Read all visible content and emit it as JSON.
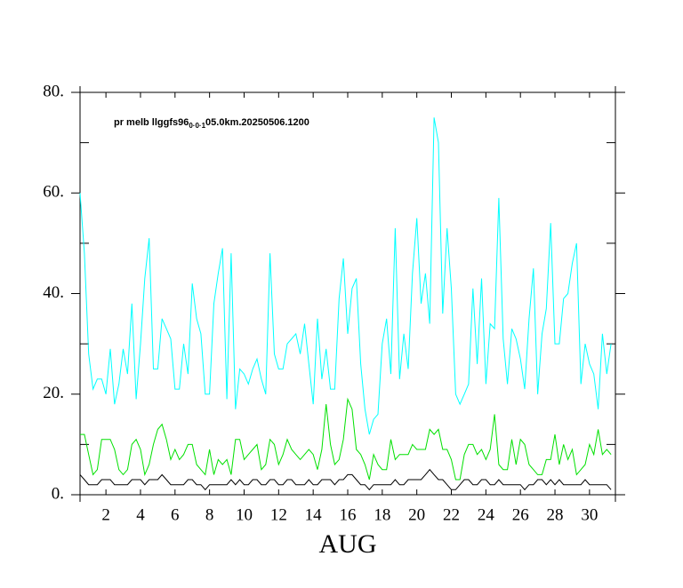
{
  "chart_data": {
    "type": "line",
    "annotation": {
      "text": "pr melb llggfs96",
      "subscript": "0·0·1",
      "suffix": "05.0km.20250506.1200"
    },
    "x_label": "AUG",
    "x": [
      1,
      1.25,
      1.5,
      1.75,
      2,
      2.25,
      2.5,
      2.75,
      3,
      3.25,
      3.5,
      3.75,
      4,
      4.25,
      4.5,
      4.75,
      5,
      5.25,
      5.5,
      5.75,
      6,
      6.25,
      6.5,
      6.75,
      7,
      7.25,
      7.5,
      7.75,
      8,
      8.25,
      8.5,
      8.75,
      9,
      9.25,
      9.5,
      9.75,
      10,
      10.25,
      10.5,
      10.75,
      11,
      11.25,
      11.5,
      11.75,
      12,
      12.25,
      12.5,
      12.75,
      13,
      13.25,
      13.5,
      13.75,
      14,
      14.25,
      14.5,
      14.75,
      15,
      15.25,
      15.5,
      15.75,
      16,
      16.25,
      16.5,
      16.75,
      17,
      17.25,
      17.5,
      17.75,
      18,
      18.25,
      18.5,
      18.75,
      19,
      19.25,
      19.5,
      19.75,
      20,
      20.25,
      20.5,
      20.75,
      21,
      21.25,
      21.5,
      21.75,
      22,
      22.25,
      22.5,
      22.75,
      23,
      23.25,
      23.5,
      23.75,
      24,
      24.25,
      24.5,
      24.75,
      25,
      25.25,
      25.5,
      25.75,
      26,
      26.25,
      26.5,
      26.75,
      27,
      27.25,
      27.5,
      27.75,
      28,
      28.25,
      28.5,
      28.75,
      29,
      29.25,
      29.5,
      29.75,
      30,
      30.25,
      30.5,
      30.75,
      31,
      31.25,
      31.5,
      31.75
    ],
    "series": [
      {
        "color": "#00ffff",
        "values": [
          60,
          48,
          28,
          21,
          23,
          23,
          20,
          29,
          18,
          22,
          29,
          24,
          38,
          19,
          30,
          43,
          51,
          25,
          25,
          35,
          33,
          31,
          21,
          21,
          30,
          24,
          42,
          35,
          32,
          20,
          20,
          38,
          44,
          49,
          19,
          48,
          17,
          25,
          24,
          22,
          25,
          27,
          23,
          20,
          48,
          28,
          25,
          25,
          30,
          31,
          32,
          28,
          34,
          26,
          18,
          35,
          23,
          29,
          21,
          21,
          39,
          47,
          32,
          41,
          43,
          26,
          17,
          12,
          15,
          16,
          30,
          35,
          24,
          53,
          23,
          32,
          25,
          44,
          55,
          38,
          44,
          34,
          75,
          70,
          36,
          53,
          41,
          20,
          18,
          20,
          22,
          41,
          26,
          43,
          22,
          34,
          33,
          59,
          31,
          22,
          33,
          31,
          27,
          21,
          35,
          45,
          20,
          32,
          37,
          54,
          30,
          30,
          39,
          40,
          46,
          50,
          22,
          30,
          26,
          24,
          17,
          32,
          24,
          30
        ]
      },
      {
        "color": "#00e000",
        "values": [
          12,
          12,
          8,
          4,
          5,
          11,
          11,
          11,
          9,
          5,
          4,
          5,
          10,
          11,
          9,
          4,
          6,
          10,
          13,
          14,
          11,
          7,
          9,
          7,
          8,
          10,
          10,
          6,
          5,
          4,
          9,
          4,
          7,
          6,
          7,
          4,
          11,
          11,
          7,
          8,
          9,
          10,
          5,
          6,
          11,
          10,
          6,
          8,
          11,
          9,
          8,
          7,
          8,
          9,
          8,
          5,
          9,
          18,
          10,
          6,
          7,
          11,
          19,
          17,
          9,
          8,
          6,
          3,
          8,
          6,
          5,
          5,
          11,
          7,
          8,
          8,
          8,
          10,
          9,
          9,
          9,
          13,
          12,
          13,
          9,
          9,
          7,
          3,
          3,
          8,
          10,
          10,
          8,
          9,
          7,
          9,
          16,
          6,
          5,
          5,
          11,
          6,
          11,
          10,
          6,
          5,
          4,
          4,
          7,
          7,
          12,
          6,
          10,
          7,
          9,
          4,
          5,
          6,
          10,
          8,
          13,
          8,
          9,
          8
        ]
      },
      {
        "color": "#000000",
        "values": [
          4,
          3,
          2,
          2,
          2,
          3,
          3,
          3,
          2,
          2,
          2,
          2,
          3,
          3,
          3,
          2,
          3,
          3,
          3,
          4,
          3,
          2,
          2,
          2,
          2,
          3,
          3,
          2,
          2,
          1,
          2,
          2,
          2,
          2,
          2,
          3,
          2,
          3,
          2,
          2,
          3,
          3,
          2,
          2,
          3,
          3,
          2,
          2,
          3,
          3,
          2,
          2,
          2,
          3,
          2,
          2,
          3,
          3,
          3,
          2,
          3,
          3,
          4,
          4,
          3,
          2,
          2,
          1,
          2,
          2,
          2,
          2,
          2,
          3,
          2,
          2,
          3,
          3,
          3,
          3,
          4,
          5,
          4,
          3,
          3,
          2,
          1,
          1,
          2,
          3,
          3,
          2,
          2,
          3,
          3,
          2,
          2,
          3,
          2,
          2,
          2,
          2,
          2,
          1,
          2,
          2,
          3,
          3,
          2,
          3,
          2,
          3,
          2,
          2,
          2,
          2,
          2,
          3,
          2,
          2,
          2,
          2,
          2,
          1
        ]
      }
    ],
    "xlim": [
      1,
      32
    ],
    "xticks": [
      {
        "value": 2.5,
        "label": "2"
      },
      {
        "value": 4.5,
        "label": "4"
      },
      {
        "value": 6.5,
        "label": "6"
      },
      {
        "value": 8.5,
        "label": "8"
      },
      {
        "value": 10.5,
        "label": "10"
      },
      {
        "value": 12.5,
        "label": "12"
      },
      {
        "value": 14.5,
        "label": "14"
      },
      {
        "value": 16.5,
        "label": "16"
      },
      {
        "value": 18.5,
        "label": "18"
      },
      {
        "value": 20.5,
        "label": "20"
      },
      {
        "value": 22.5,
        "label": "22"
      },
      {
        "value": 24.5,
        "label": "24"
      },
      {
        "value": 26.5,
        "label": "26"
      },
      {
        "value": 28.5,
        "label": "28"
      },
      {
        "value": 30.5,
        "label": "30"
      }
    ],
    "ylim": [
      0,
      80
    ],
    "yticks": [
      {
        "value": 0,
        "label": "0."
      },
      {
        "value": 20,
        "label": "20."
      },
      {
        "value": 40,
        "label": "40."
      },
      {
        "value": 60,
        "label": "60."
      },
      {
        "value": 80,
        "label": "80."
      }
    ],
    "yminorticks": [
      10,
      30,
      50,
      70
    ]
  }
}
